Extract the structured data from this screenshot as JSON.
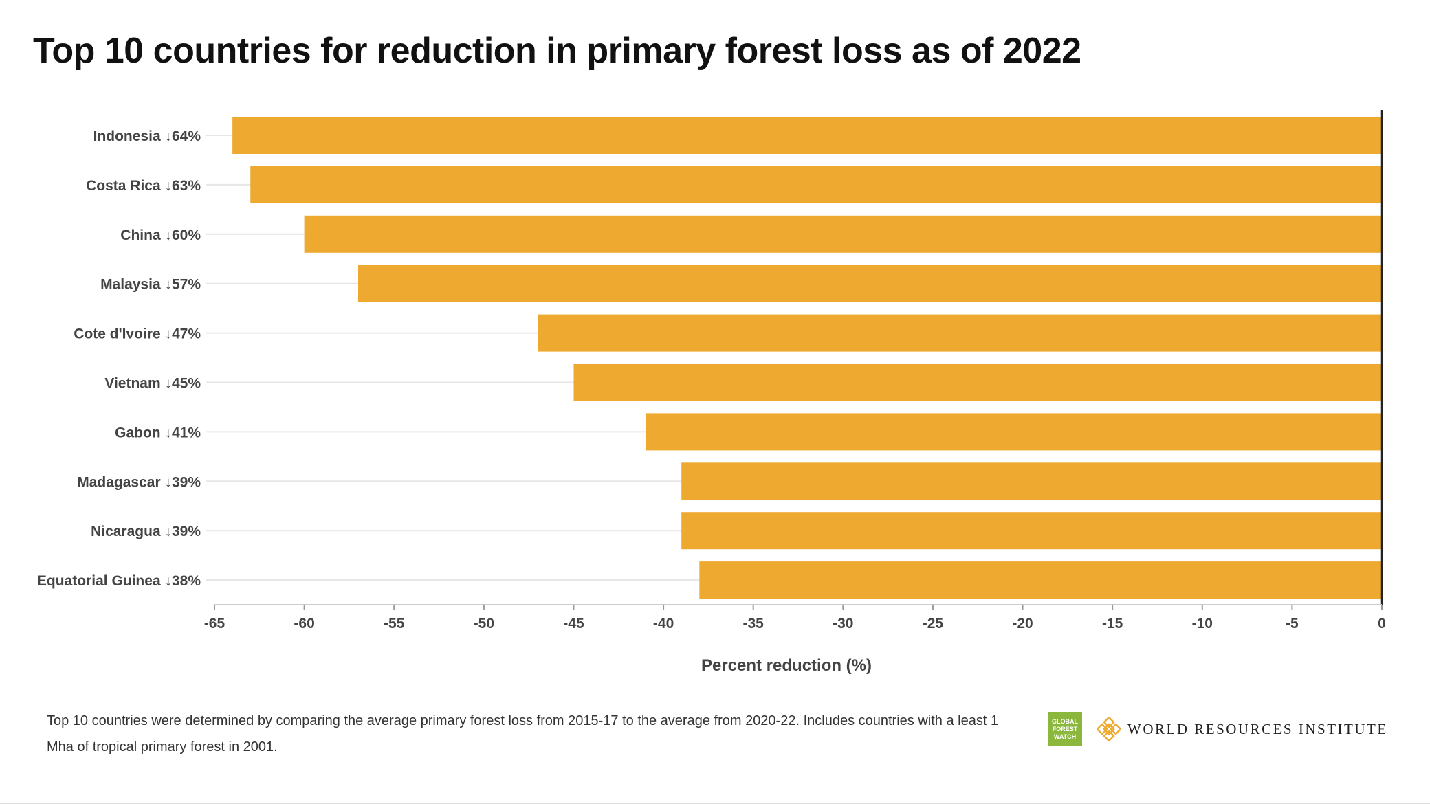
{
  "chart_data": {
    "type": "bar",
    "title": "Top 10 countries for reduction in primary forest loss as of 2022",
    "xlabel": "Percent reduction (%)",
    "ylabel": "",
    "categories": [
      "Indonesia ↓64%",
      "Costa Rica ↓63%",
      "China ↓60%",
      "Malaysia ↓57%",
      "Cote d'Ivoire ↓47%",
      "Vietnam ↓45%",
      "Gabon ↓41%",
      "Madagascar ↓39%",
      "Nicaragua ↓39%",
      "Equatorial Guinea ↓38%"
    ],
    "values": [
      -64,
      -63,
      -60,
      -57,
      -47,
      -45,
      -41,
      -39,
      -39,
      -38
    ],
    "xlim": [
      -65,
      0
    ],
    "xticks": [
      "-65",
      "-60",
      "-55",
      "-50",
      "-45",
      "-40",
      "-35",
      "-30",
      "-25",
      "-20",
      "-15",
      "-10",
      "-5",
      "0"
    ],
    "orientation": "horizontal",
    "grid": true,
    "bar_color": "#eeaa30"
  },
  "footnote": "Top 10 countries were determined by comparing the average primary forest loss from 2015-17 to the average from 2020-22. Includes countries with a least 1 Mha of tropical primary forest in 2001.",
  "logos": {
    "gfw": "GLOBAL FOREST WATCH",
    "wri": "WORLD RESOURCES INSTITUTE"
  }
}
